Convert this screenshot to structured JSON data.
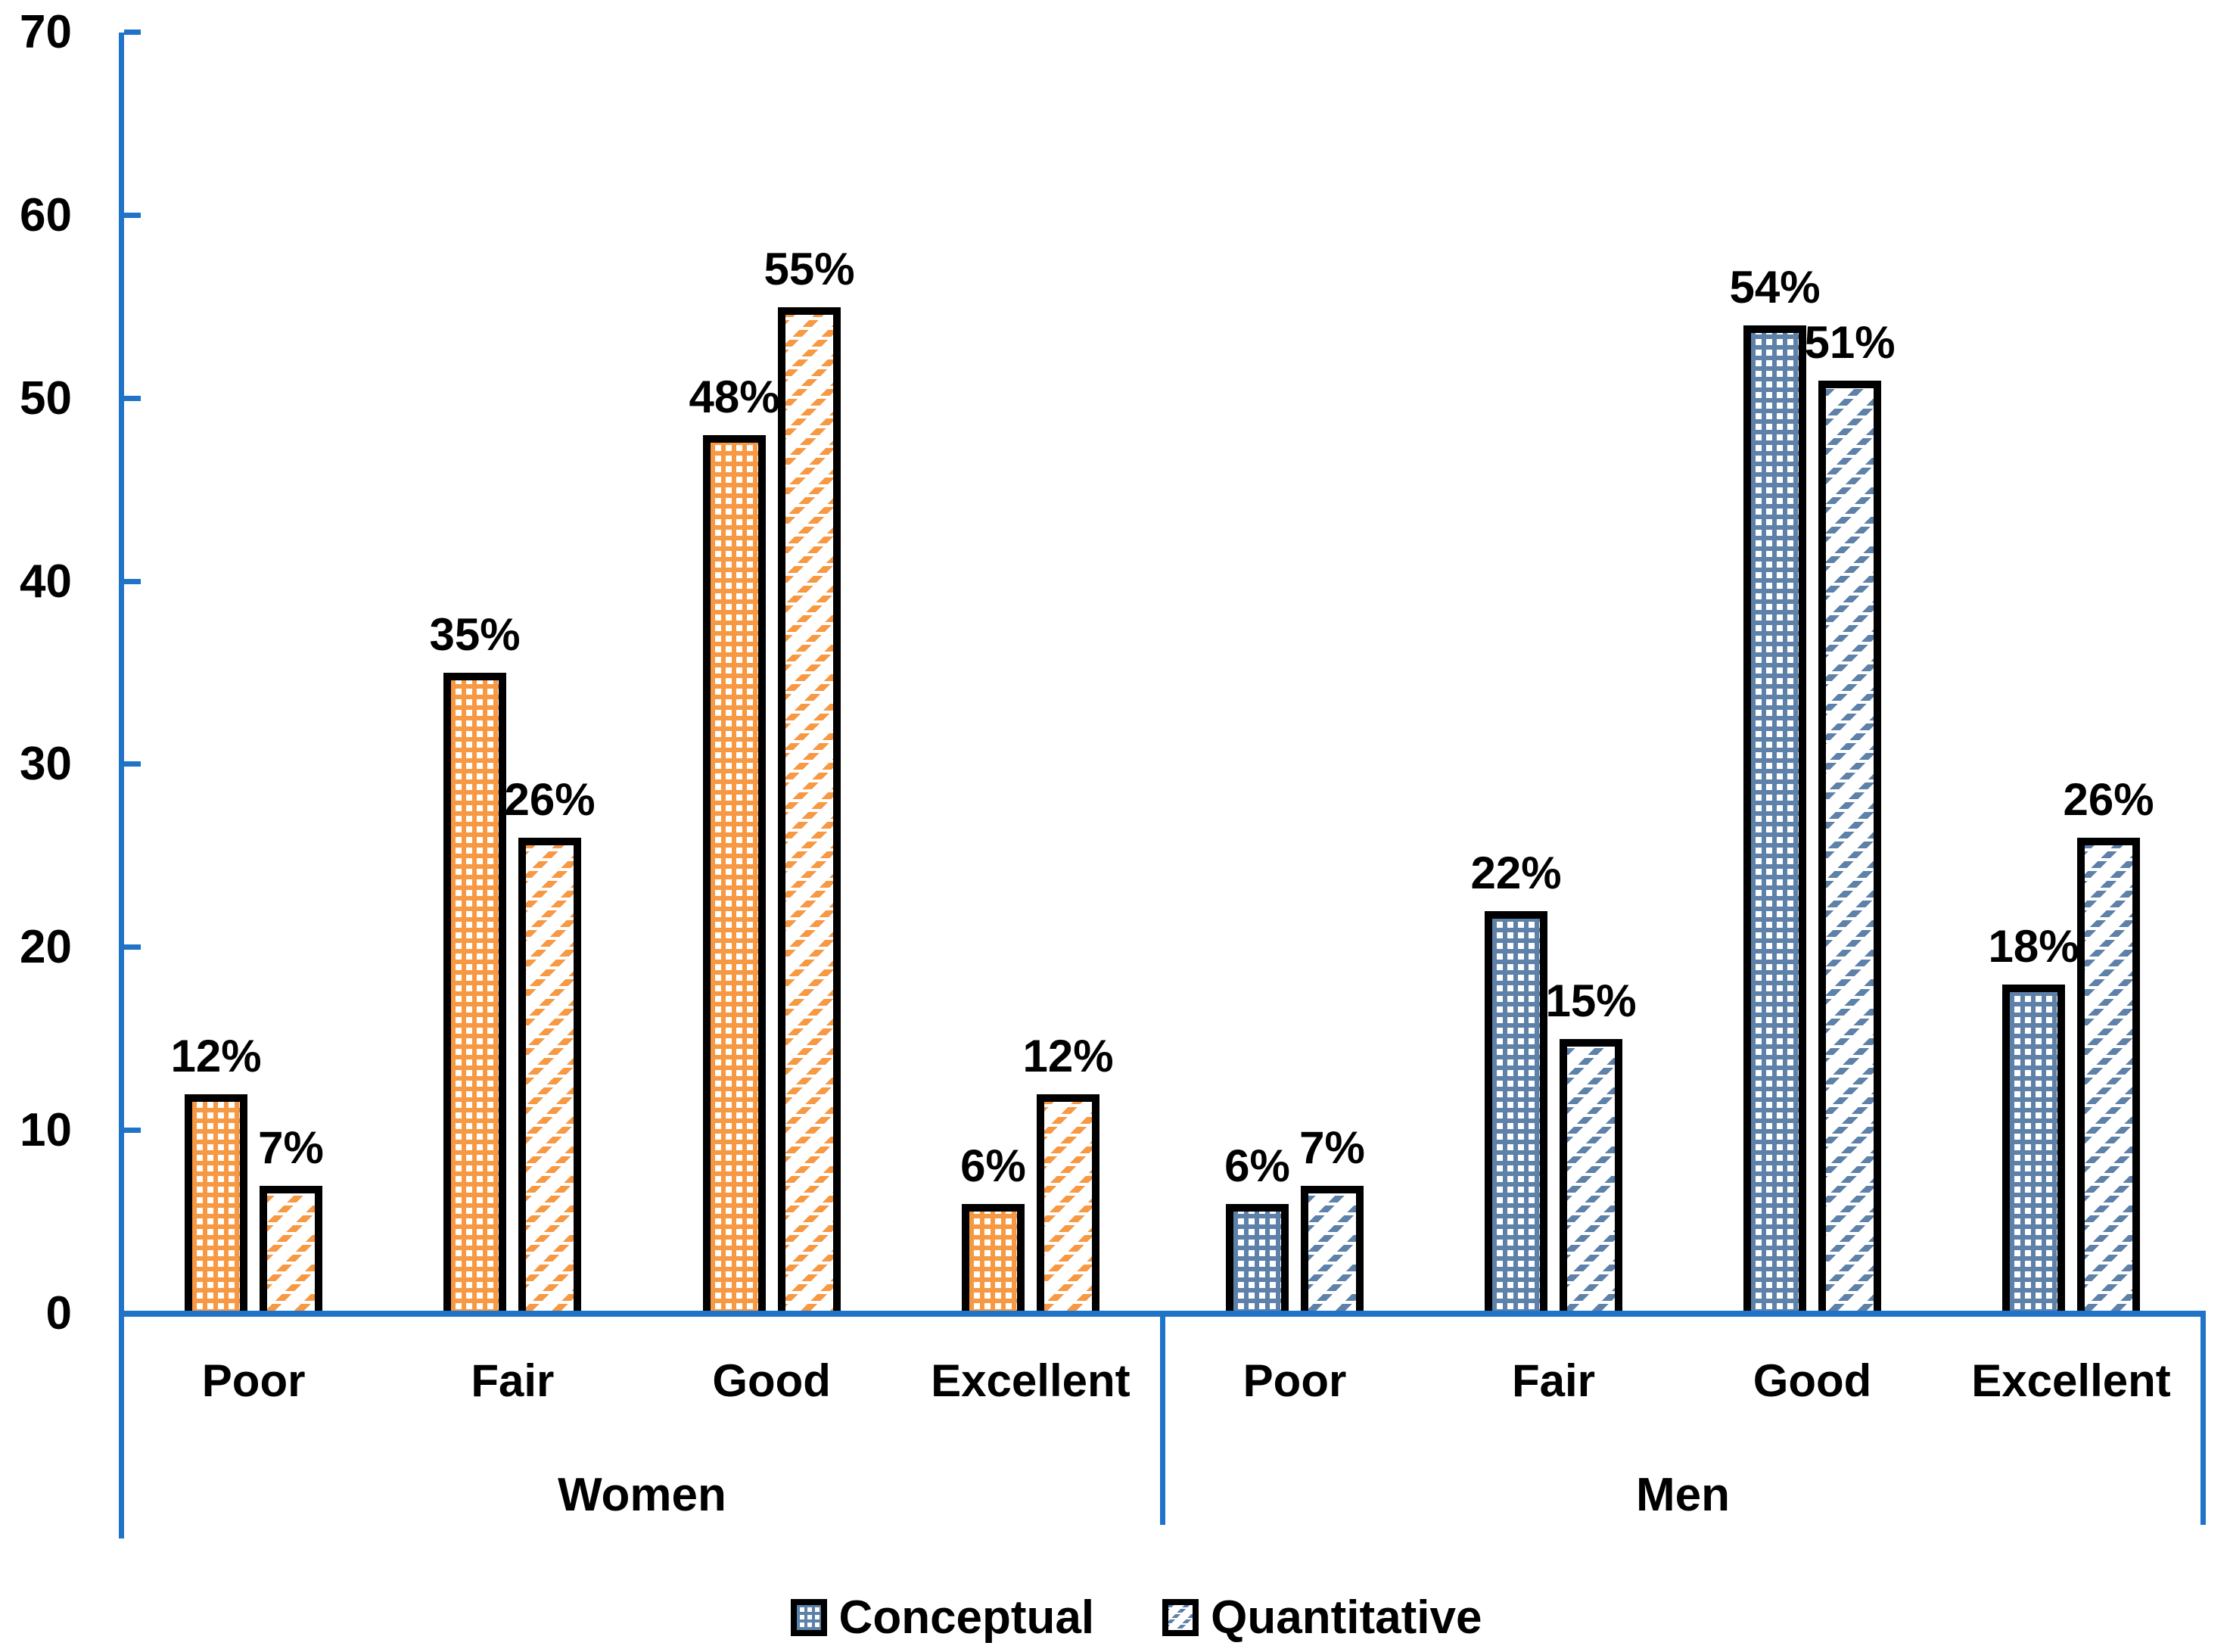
{
  "chart_data": {
    "type": "bar",
    "title": "",
    "groups": [
      "Women",
      "Men"
    ],
    "categories": [
      "Poor",
      "Fair",
      "Good",
      "Excellent"
    ],
    "series": [
      {
        "name": "Conceptual",
        "pattern": "dotted",
        "values": {
          "Women": [
            12,
            35,
            48,
            6
          ],
          "Men": [
            6,
            22,
            54,
            18
          ]
        }
      },
      {
        "name": "Quantitative",
        "pattern": "diagonal-hatch",
        "values": {
          "Women": [
            7,
            26,
            55,
            12
          ],
          "Men": [
            7,
            15,
            51,
            26
          ]
        }
      }
    ],
    "data_labels": {
      "Women": {
        "Conceptual": [
          "12%",
          "35%",
          "48%",
          "6%"
        ],
        "Quantitative": [
          "7%",
          "26%",
          "55%",
          "12%"
        ]
      },
      "Men": {
        "Conceptual": [
          "6%",
          "22%",
          "54%",
          "18%"
        ],
        "Quantitative": [
          "7%",
          "15%",
          "51%",
          "26%"
        ]
      }
    },
    "data_label_suffix": "%",
    "xlabel": "",
    "ylabel": "",
    "ylim": [
      0,
      70
    ],
    "yticks": [
      0,
      10,
      20,
      30,
      40,
      50,
      60,
      70
    ],
    "grid": false,
    "legend_position": "bottom",
    "colors": {
      "women_fill": "#F79843",
      "men_fill": "#5D81A9",
      "axis": "#1F74C8",
      "bar_outline": "#000000",
      "text": "#000000"
    }
  }
}
